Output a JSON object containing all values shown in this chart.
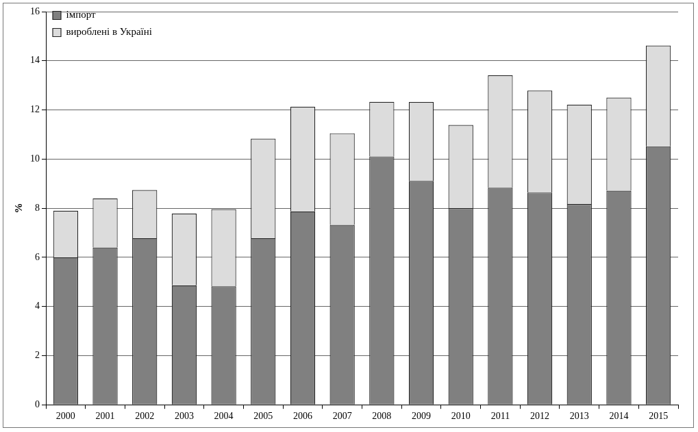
{
  "chart_data": {
    "type": "bar",
    "stacked": true,
    "ylabel": "%",
    "categories": [
      "2000",
      "2001",
      "2002",
      "2003",
      "2004",
      "2005",
      "2006",
      "2007",
      "2008",
      "2009",
      "2010",
      "2011",
      "2012",
      "2013",
      "2014",
      "2015"
    ],
    "series": [
      {
        "name": "імпорт",
        "color": "#808080",
        "values": [
          6.0,
          6.4,
          6.78,
          4.86,
          4.82,
          6.78,
          7.87,
          7.32,
          10.11,
          9.11,
          8.0,
          8.83,
          8.64,
          8.17,
          8.71,
          10.52
        ]
      },
      {
        "name": "вироблені в Україні",
        "color": "#dcdcdc",
        "values": [
          1.9,
          2.0,
          1.96,
          2.92,
          3.14,
          4.05,
          4.26,
          3.73,
          2.22,
          3.21,
          3.39,
          4.58,
          4.15,
          4.04,
          3.79,
          4.1
        ]
      }
    ],
    "ylim": [
      0,
      16
    ],
    "yticks": [
      0,
      2,
      4,
      6,
      8,
      10,
      12,
      14,
      16
    ],
    "grid": "y",
    "legend": "top left"
  }
}
